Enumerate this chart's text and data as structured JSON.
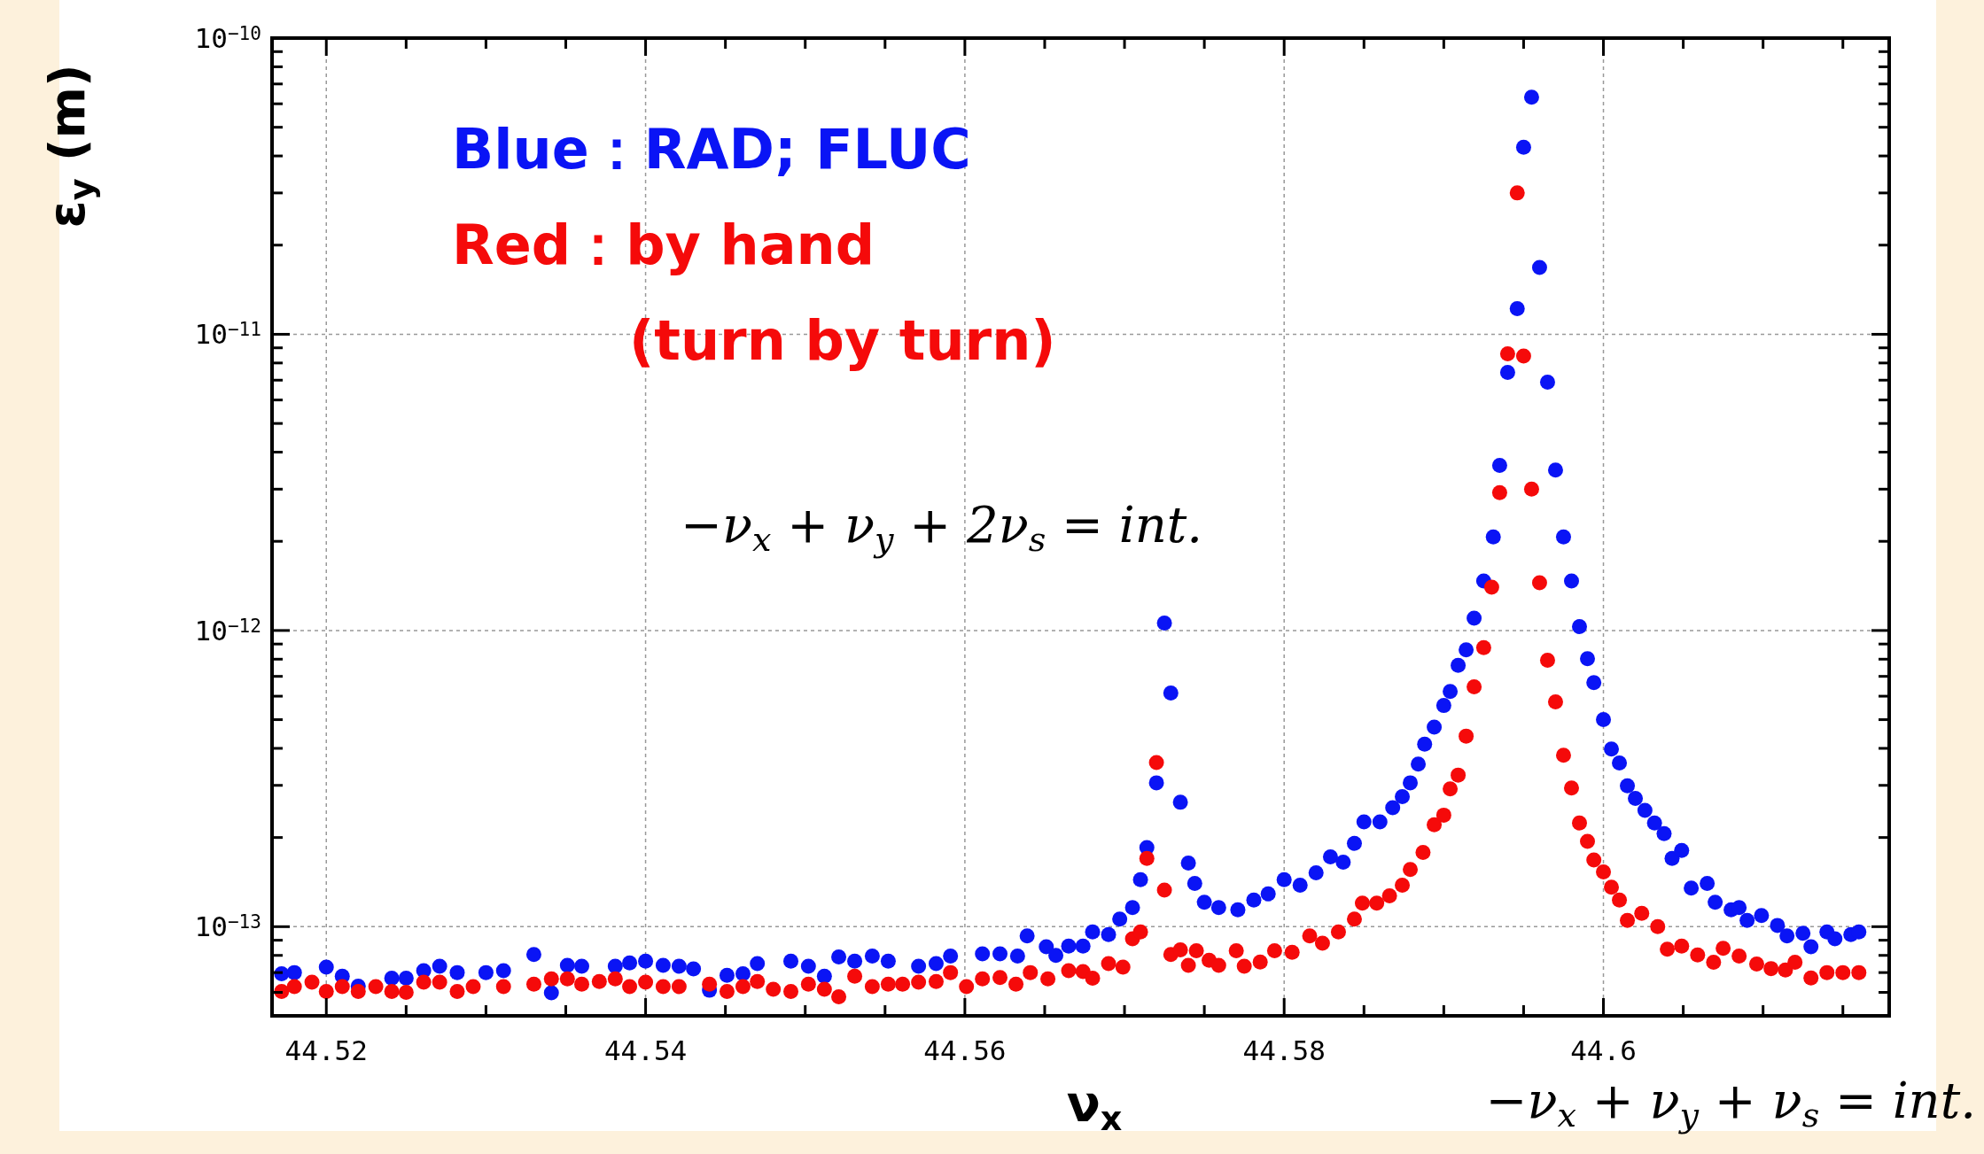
{
  "chart_data": {
    "type": "scatter",
    "xlabel": "ν$_{x}$",
    "ylabel": "ε$_{y}$ (m)",
    "log": "y",
    "grid": true,
    "marker": "circle",
    "xlim": [
      44.5166,
      44.6179
    ],
    "ylim": [
      5e-14,
      1e-10
    ],
    "xticks": [
      44.52,
      {
        "value": 44.525,
        "label": null
      },
      {
        "value": 44.53,
        "label": null
      },
      {
        "value": 44.535,
        "label": null
      },
      44.54,
      {
        "value": 44.545,
        "label": null
      },
      {
        "value": 44.55,
        "label": null
      },
      {
        "value": 44.555,
        "label": null
      },
      44.56,
      {
        "value": 44.565,
        "label": null
      },
      {
        "value": 44.57,
        "label": null
      },
      {
        "value": 44.575,
        "label": null
      },
      44.58,
      {
        "value": 44.585,
        "label": null
      },
      {
        "value": 44.59,
        "label": null
      },
      {
        "value": 44.595,
        "label": null
      },
      {
        "value": 44.6,
        "label": "44.6"
      },
      {
        "value": 44.605,
        "label": null
      },
      {
        "value": 44.61,
        "label": null
      },
      {
        "value": 44.615,
        "label": null
      }
    ],
    "yticks": [
      {
        "value": 1e-13,
        "label": "10$^{−13}$"
      },
      {
        "value": 1e-12,
        "label": "10$^{−12}$"
      },
      {
        "value": 1e-11,
        "label": "10$^{−11}$"
      },
      {
        "value": 1e-10,
        "label": "10$^{−10}$"
      }
    ],
    "annotations": [
      "−ν$_{x}$ + ν$_{y}$ + 2ν$_{s}$ = int.",
      "−ν$_{x}$ + ν$_{y}$ + ν$_{s}$ = int."
    ],
    "series": [
      {
        "name": "Blue：RAD; FLUC",
        "color": "#0a14f5",
        "x": [
          44.5172,
          44.518,
          44.52,
          44.521,
          44.522,
          44.5241,
          44.525,
          44.5261,
          44.5271,
          44.5282,
          44.53,
          44.5311,
          44.533,
          44.5341,
          44.5351,
          44.536,
          44.5381,
          44.539,
          44.54,
          44.5411,
          44.5421,
          44.543,
          44.544,
          44.5451,
          44.5461,
          44.547,
          44.5491,
          44.5502,
          44.5512,
          44.5521,
          44.5531,
          44.5542,
          44.5552,
          44.5571,
          44.5582,
          44.5591,
          44.5611,
          44.5622,
          44.5633,
          44.5639,
          44.5651,
          44.5657,
          44.5665,
          44.5674,
          44.568,
          44.569,
          44.5697,
          44.5705,
          44.571,
          44.5714,
          44.572,
          44.5725,
          44.5729,
          44.5735,
          44.574,
          44.5744,
          44.575,
          44.5759,
          44.5771,
          44.5781,
          44.579,
          44.58,
          44.581,
          44.582,
          44.5829,
          44.5837,
          44.5844,
          44.585,
          44.586,
          44.5868,
          44.5874,
          44.5879,
          44.5884,
          44.5888,
          44.5894,
          44.59,
          44.5904,
          44.5909,
          44.5914,
          44.5919,
          44.5925,
          44.5931,
          44.5935,
          44.594,
          44.5946,
          44.595,
          44.5955,
          44.596,
          44.5965,
          44.597,
          44.5975,
          44.598,
          44.5985,
          44.599,
          44.5994,
          44.6,
          44.6005,
          44.601,
          44.6015,
          44.602,
          44.6026,
          44.6032,
          44.6038,
          44.6043,
          44.6049,
          44.6055,
          44.6065,
          44.607,
          44.608,
          44.6085,
          44.609,
          44.6099,
          44.6109,
          44.6115,
          44.6125,
          44.613,
          44.614,
          44.6145,
          44.6155,
          44.616
        ],
        "values": [
          6.93e-14,
          7e-14,
          7.3e-14,
          6.8e-14,
          6.3e-14,
          6.7e-14,
          6.7e-14,
          7.1e-14,
          7.35e-14,
          7e-14,
          7e-14,
          7.1e-14,
          8.05e-14,
          5.98e-14,
          7.4e-14,
          7.35e-14,
          7.35e-14,
          7.55e-14,
          7.65e-14,
          7.4e-14,
          7.35e-14,
          7.2e-14,
          6.1e-14,
          6.85e-14,
          6.93e-14,
          7.5e-14,
          7.65e-14,
          7.35e-14,
          6.8e-14,
          7.9e-14,
          7.65e-14,
          7.96e-14,
          7.65e-14,
          7.35e-14,
          7.5e-14,
          7.96e-14,
          8.1e-14,
          8.1e-14,
          7.96e-14,
          9.3e-14,
          8.55e-14,
          8e-14,
          8.6e-14,
          8.6e-14,
          9.6e-14,
          9.4e-14,
          1.06e-13,
          1.16e-13,
          1.44e-13,
          1.85e-13,
          3.06e-13,
          1.06e-12,
          6.15e-13,
          2.63e-13,
          1.64e-13,
          1.4e-13,
          1.21e-13,
          1.16e-13,
          1.14e-13,
          1.23e-13,
          1.29e-13,
          1.44e-13,
          1.38e-13,
          1.52e-13,
          1.72e-13,
          1.65e-13,
          1.91e-13,
          2.26e-13,
          2.26e-13,
          2.52e-13,
          2.75e-13,
          3.06e-13,
          3.54e-13,
          4.13e-13,
          4.72e-13,
          5.58e-13,
          6.22e-13,
          7.63e-13,
          8.6e-13,
          1.1e-12,
          1.47e-12,
          2.07e-12,
          3.61e-12,
          7.43e-12,
          1.22e-11,
          4.28e-11,
          6.32e-11,
          1.68e-11,
          6.89e-12,
          3.48e-12,
          2.07e-12,
          1.47e-12,
          1.03e-12,
          8.03e-13,
          6.67e-13,
          5e-13,
          3.98e-13,
          3.57e-13,
          2.99e-13,
          2.71e-13,
          2.47e-13,
          2.24e-13,
          2.06e-13,
          1.7e-13,
          1.81e-13,
          1.35e-13,
          1.4e-13,
          1.21e-13,
          1.14e-13,
          1.16e-13,
          1.05e-13,
          1.09e-13,
          1.01e-13,
          9.3e-14,
          9.5e-14,
          8.55e-14,
          9.6e-14,
          9.1e-14,
          9.4e-14,
          9.6e-14
        ]
      },
      {
        "name": "Red：by hand\n(turn by turn)",
        "color": "#f50a0a",
        "x": [
          44.5172,
          44.518,
          44.5191,
          44.52,
          44.521,
          44.522,
          44.5231,
          44.5241,
          44.525,
          44.5261,
          44.5271,
          44.5282,
          44.5292,
          44.5311,
          44.533,
          44.5341,
          44.5351,
          44.536,
          44.5371,
          44.5381,
          44.539,
          44.54,
          44.5411,
          44.5421,
          44.544,
          44.5451,
          44.5461,
          44.547,
          44.548,
          44.5491,
          44.5502,
          44.5512,
          44.5521,
          44.5531,
          44.5542,
          44.5552,
          44.5561,
          44.5571,
          44.5582,
          44.5591,
          44.5601,
          44.5611,
          44.5622,
          44.5632,
          44.5641,
          44.5652,
          44.5665,
          44.5674,
          44.568,
          44.569,
          44.5699,
          44.5705,
          44.571,
          44.5714,
          44.572,
          44.5725,
          44.5729,
          44.5735,
          44.574,
          44.5745,
          44.5753,
          44.5759,
          44.577,
          44.5775,
          44.5785,
          44.5794,
          44.5805,
          44.5816,
          44.5824,
          44.5834,
          44.5844,
          44.5849,
          44.5858,
          44.5866,
          44.5874,
          44.5879,
          44.5887,
          44.5894,
          44.59,
          44.5904,
          44.5909,
          44.5914,
          44.5919,
          44.5925,
          44.593,
          44.5935,
          44.594,
          44.5946,
          44.595,
          44.5955,
          44.596,
          44.5965,
          44.597,
          44.5975,
          44.598,
          44.5985,
          44.599,
          44.5994,
          44.6,
          44.6005,
          44.601,
          44.6015,
          44.6024,
          44.6034,
          44.604,
          44.6049,
          44.6059,
          44.6069,
          44.6075,
          44.6085,
          44.6096,
          44.6105,
          44.6114,
          44.612,
          44.613,
          44.614,
          44.615,
          44.616
        ],
        "values": [
          6.04e-14,
          6.28e-14,
          6.5e-14,
          6.04e-14,
          6.28e-14,
          6.04e-14,
          6.28e-14,
          6.04e-14,
          6e-14,
          6.5e-14,
          6.5e-14,
          6.04e-14,
          6.28e-14,
          6.28e-14,
          6.4e-14,
          6.66e-14,
          6.66e-14,
          6.4e-14,
          6.53e-14,
          6.66e-14,
          6.28e-14,
          6.5e-14,
          6.28e-14,
          6.28e-14,
          6.4e-14,
          6.04e-14,
          6.28e-14,
          6.53e-14,
          6.15e-14,
          6.04e-14,
          6.4e-14,
          6.15e-14,
          5.8e-14,
          6.8e-14,
          6.28e-14,
          6.4e-14,
          6.4e-14,
          6.5e-14,
          6.53e-14,
          7e-14,
          6.28e-14,
          6.66e-14,
          6.73e-14,
          6.4e-14,
          7e-14,
          6.66e-14,
          7.1e-14,
          7.05e-14,
          6.7e-14,
          7.5e-14,
          7.3e-14,
          9.1e-14,
          9.6e-14,
          1.7e-13,
          3.58e-13,
          1.33e-13,
          8.05e-14,
          8.35e-14,
          7.4e-14,
          8.3e-14,
          7.7e-14,
          7.4e-14,
          8.3e-14,
          7.35e-14,
          7.6e-14,
          8.3e-14,
          8.2e-14,
          9.3e-14,
          8.8e-14,
          9.6e-14,
          1.06e-13,
          1.2e-13,
          1.2e-13,
          1.27e-13,
          1.38e-13,
          1.56e-13,
          1.78e-13,
          2.21e-13,
          2.38e-13,
          2.92e-13,
          3.25e-13,
          4.4e-13,
          6.45e-13,
          8.75e-13,
          1.4e-12,
          2.92e-12,
          8.59e-12,
          3e-11,
          8.45e-12,
          3e-12,
          1.45e-12,
          7.94e-13,
          5.74e-13,
          3.79e-13,
          2.94e-13,
          2.24e-13,
          1.94e-13,
          1.68e-13,
          1.53e-13,
          1.36e-13,
          1.23e-13,
          1.05e-13,
          1.11e-13,
          1e-13,
          8.4e-14,
          8.6e-14,
          8.03e-14,
          7.58e-14,
          8.45e-14,
          7.96e-14,
          7.48e-14,
          7.22e-14,
          7.14e-14,
          7.58e-14,
          6.71e-14,
          7e-14,
          7e-14,
          7e-14
        ]
      }
    ]
  }
}
